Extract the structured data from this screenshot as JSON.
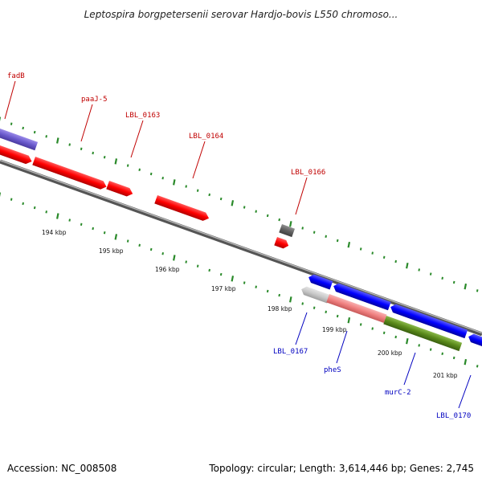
{
  "title": "Leptospira borgpetersenii serovar Hardjo-bovis L550 chromoso...",
  "footer": {
    "accession": "Accession: NC_008508",
    "summary": "Topology: circular; Length: 3,614,446 bp; Genes: 2,745"
  },
  "colors": {
    "forward_label": "#c00000",
    "reverse_label": "#0000c0",
    "backbone": "#808080",
    "tick": "#2a8a2a",
    "red_gene": "#ff0000",
    "blue_gene": "#0000ff",
    "purple_gene": "#6a5acd",
    "gray_gene": "#606060",
    "light_gray_gene": "#c8c8c8",
    "pink_gene": "#f08080",
    "olive_gene": "#5a8a1a"
  },
  "scale_labels": [
    "194 kbp",
    "195 kbp",
    "196 kbp",
    "197 kbp",
    "198 kbp",
    "199 kbp",
    "200 kbp",
    "201 kbp"
  ],
  "forward_gene_labels": [
    "fadB",
    "paaJ-5",
    "LBL_0163",
    "LBL_0164",
    "LBL_0166"
  ],
  "reverse_gene_labels": [
    "LBL_0167",
    "pheS",
    "murC-2",
    "LBL_0170"
  ]
}
